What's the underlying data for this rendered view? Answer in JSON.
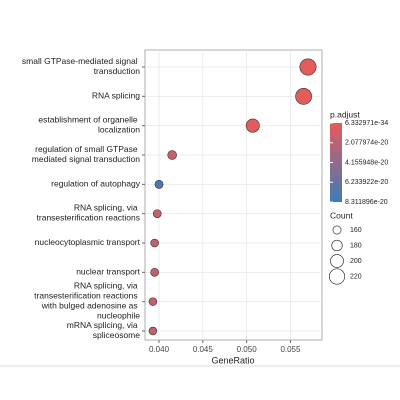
{
  "chart_data": {
    "type": "dot",
    "x_label": "GeneRatio",
    "categories": [
      "small GTPase-mediated signal transduction",
      "RNA splicing",
      "establishment of organelle localization",
      "regulation of small GTPase mediated signal transduction",
      "regulation of autophagy",
      "RNA splicing, via transesterification reactions",
      "nucleocytoplasmic transport",
      "nuclear transport",
      "RNA splicing, via transesterification reactions with bulged adenosine as nucleophile",
      "mRNA splicing, via spliceosome"
    ],
    "x": [
      0.057,
      0.0565,
      0.0507,
      0.0415,
      0.04,
      0.0398,
      0.0395,
      0.0395,
      0.0393,
      0.0393
    ],
    "count": [
      228,
      226,
      203,
      166,
      160,
      159,
      158,
      158,
      157,
      157
    ],
    "p_adjust": [
      1e-30,
      2e-30,
      1e-25,
      1.5e-20,
      7.5e-20,
      1.6e-20,
      1.8e-20,
      1.8e-20,
      1.9e-20,
      1.9e-20
    ],
    "xlim": [
      0.0384,
      0.0586
    ],
    "xticks": [
      {
        "value": 0.04,
        "label": "0.040"
      },
      {
        "value": 0.045,
        "label": "0.045"
      },
      {
        "value": 0.05,
        "label": "0.050"
      },
      {
        "value": 0.055,
        "label": "0.055"
      }
    ],
    "grid": true,
    "color_legend": {
      "title": "p.adjust",
      "low_color": "#e35b5b",
      "high_color": "#3e7cb9",
      "lim": [
        6.332971e-34,
        8.311896e-20
      ],
      "ticks": [
        {
          "value": 6.332971e-34,
          "label": "6.332971e-34"
        },
        {
          "value": 2.077974e-20,
          "label": "2.077974e-20"
        },
        {
          "value": 4.155948e-20,
          "label": "4.155948e-20"
        },
        {
          "value": 6.233922e-20,
          "label": "6.233922e-20"
        },
        {
          "value": 8.311896e-20,
          "label": "8.311896e-20"
        }
      ]
    },
    "size_legend": {
      "title": "Count",
      "values": [
        160,
        180,
        200,
        220
      ]
    }
  }
}
